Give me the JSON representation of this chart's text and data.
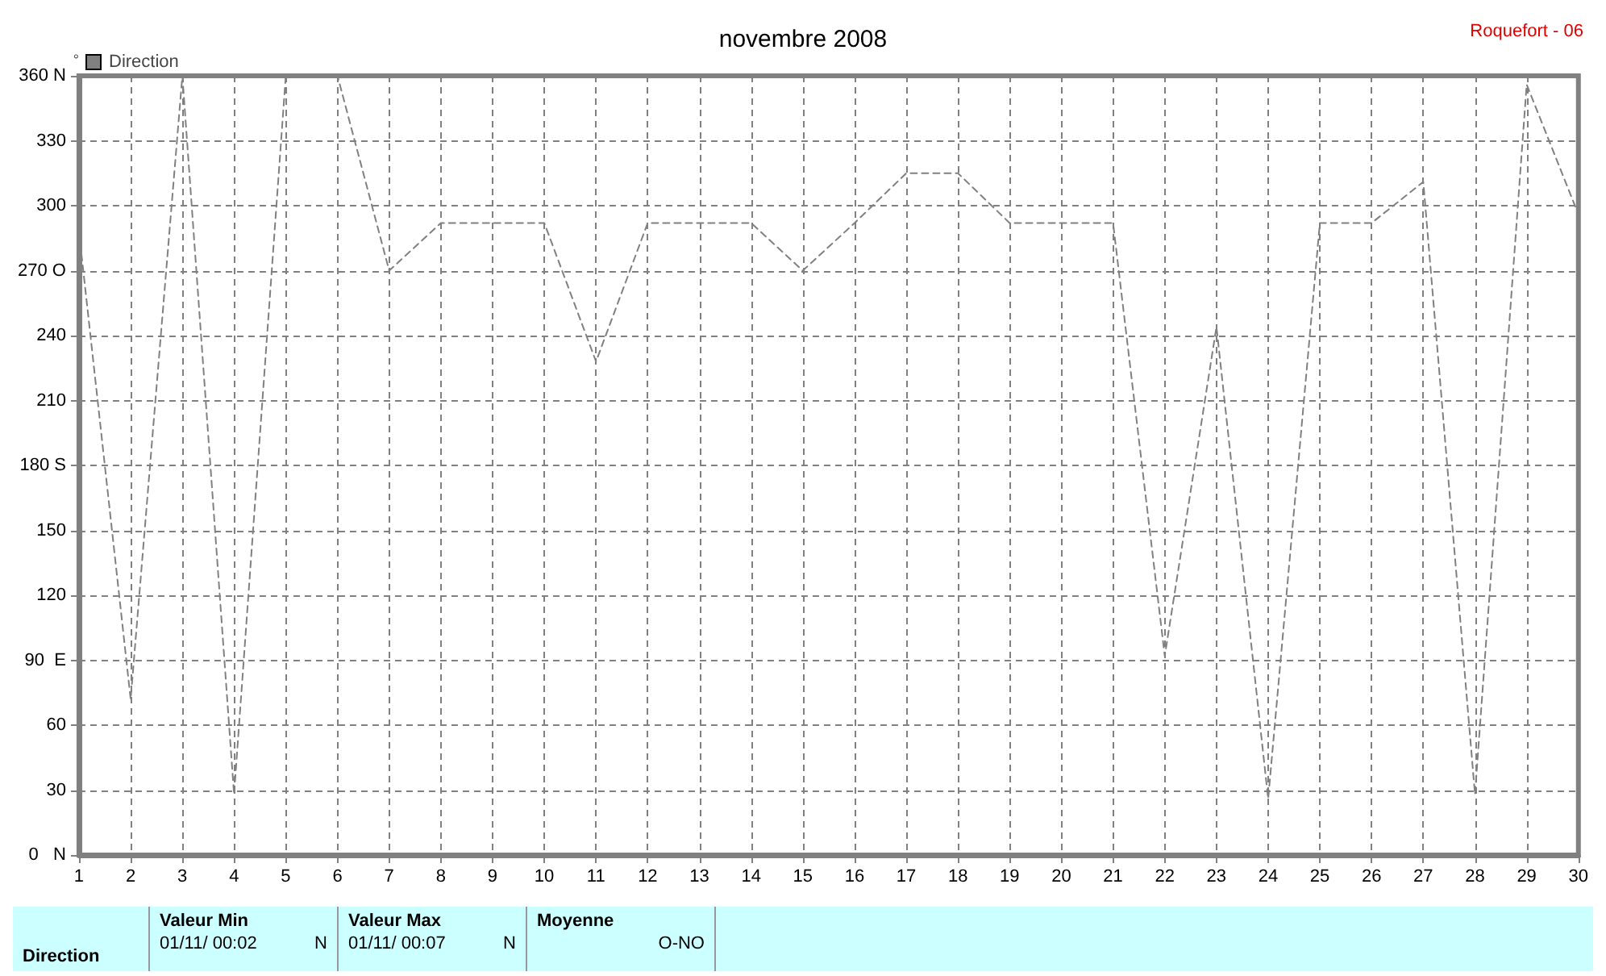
{
  "chart_data": {
    "type": "line",
    "title": "novembre 2008",
    "ylabel": "°",
    "x": [
      1,
      2,
      3,
      4,
      5,
      6,
      7,
      8,
      9,
      10,
      11,
      12,
      13,
      14,
      15,
      16,
      17,
      18,
      19,
      20,
      21,
      22,
      23,
      24,
      25,
      26,
      27,
      28,
      29,
      30
    ],
    "series": [
      {
        "name": "Direction",
        "color": "#808080",
        "values": [
          288,
          72,
          360,
          28,
          360,
          360,
          270,
          292,
          292,
          292,
          228,
          292,
          292,
          292,
          270,
          292,
          315,
          315,
          292,
          292,
          292,
          92,
          244,
          26,
          292,
          292,
          311,
          28,
          356,
          296
        ]
      }
    ],
    "xlim": [
      1,
      30
    ],
    "xticks": [
      1,
      2,
      3,
      4,
      5,
      6,
      7,
      8,
      9,
      10,
      11,
      12,
      13,
      14,
      15,
      16,
      17,
      18,
      19,
      20,
      21,
      22,
      23,
      24,
      25,
      26,
      27,
      28,
      29,
      30
    ],
    "ylim": [
      0,
      360
    ],
    "yticks": [
      {
        "value": 0,
        "label": "0   N"
      },
      30,
      60,
      {
        "value": 90,
        "label": "90  E"
      },
      120,
      150,
      {
        "value": 180,
        "label": "180 S"
      },
      210,
      240,
      {
        "value": 270,
        "label": "270 O"
      },
      300,
      330,
      {
        "value": 360,
        "label": "360 N"
      }
    ],
    "grid": true,
    "legend": "top left",
    "marker": "none",
    "line_style": "dashed",
    "annotations": [
      "Roquefort - 06",
      "Direction",
      "Valeur Min",
      "01/11/  00:02",
      "N",
      "Valeur Max",
      "01/11/  00:07",
      "N",
      "Moyenne",
      "O-NO"
    ]
  }
}
